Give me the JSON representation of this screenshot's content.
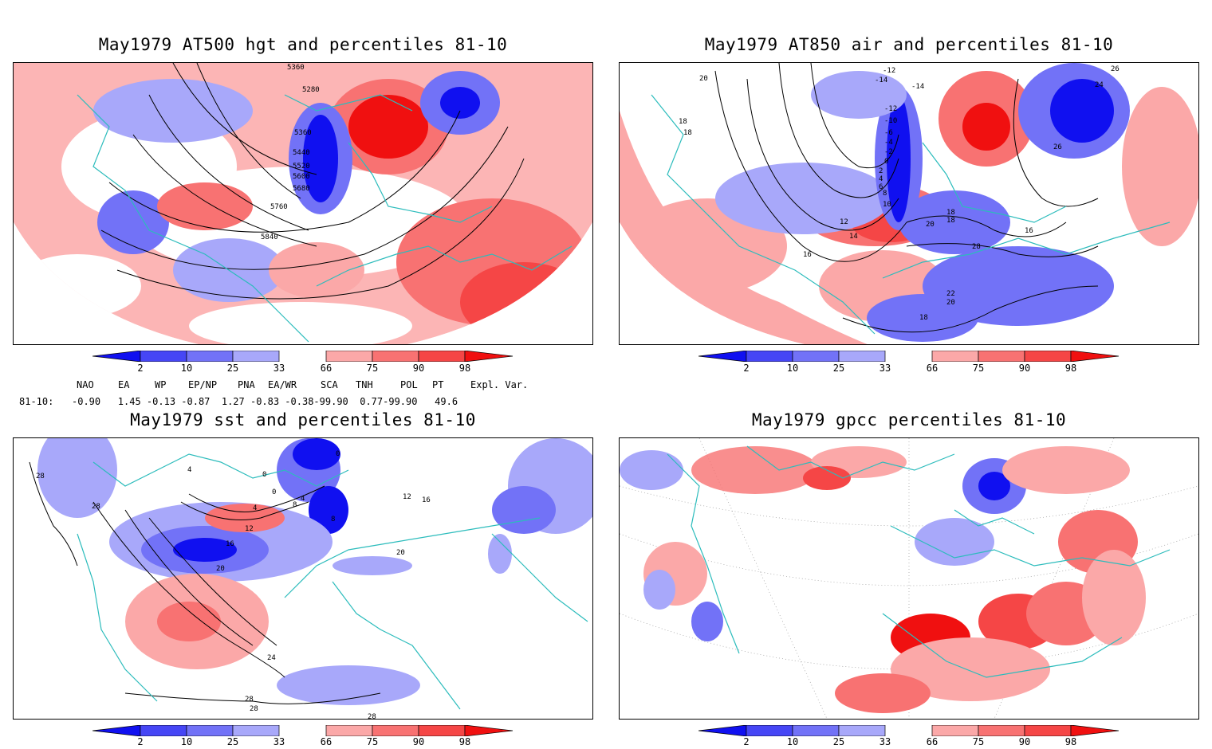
{
  "panels": [
    {
      "id": "hgt500",
      "title": "May1979 AT500 hgt and percentiles 81-10",
      "contour_labels": [
        "5360",
        "5280",
        "5360",
        "5440",
        "5520",
        "5600",
        "5680",
        "5760",
        "5840"
      ]
    },
    {
      "id": "air850",
      "title": "May1979 AT850 air and percentiles 81-10",
      "contour_labels": [
        "-12",
        "-14",
        "-14",
        "-12",
        "-10",
        "-6",
        "-4",
        "-2",
        "0",
        "2",
        "4",
        "6",
        "8",
        "10",
        "12",
        "14",
        "16",
        "18",
        "18",
        "20",
        "20",
        "22",
        "24",
        "26",
        "26",
        "28",
        "16",
        "18",
        "18",
        "20",
        "18"
      ]
    },
    {
      "id": "sst",
      "title": "May1979 sst and percentiles 81-10",
      "contour_labels": [
        "28",
        "28",
        "4",
        "0",
        "0",
        "4",
        "8",
        "4",
        "8",
        "12",
        "16",
        "20",
        "24",
        "28",
        "28",
        "28",
        "20",
        "12",
        "16",
        "0"
      ]
    },
    {
      "id": "gpcc",
      "title": "May1979 gpcc percentiles 81-10",
      "contour_labels": []
    }
  ],
  "colorbar": {
    "tick_labels": [
      "2",
      "10",
      "25",
      "33",
      "66",
      "75",
      "90",
      "98"
    ],
    "colors": [
      "#1010f0",
      "#4646f5",
      "#7272f7",
      "#a8a8fa",
      "#ffffff",
      "#fba8a8",
      "#f87272",
      "#f54646",
      "#f01010"
    ]
  },
  "indices": {
    "headers": [
      "NAO",
      "EA",
      "WP",
      "EP/NP",
      "PNA",
      "EA/WR",
      "SCA",
      "TNH",
      "POL",
      "PT",
      "Expl. Var."
    ],
    "row_label": "81-10:",
    "values_text": "-0.90   1.45 -0.13 -0.87  1.27 -0.83 -0.38-99.90  0.77-99.90   49.6"
  }
}
